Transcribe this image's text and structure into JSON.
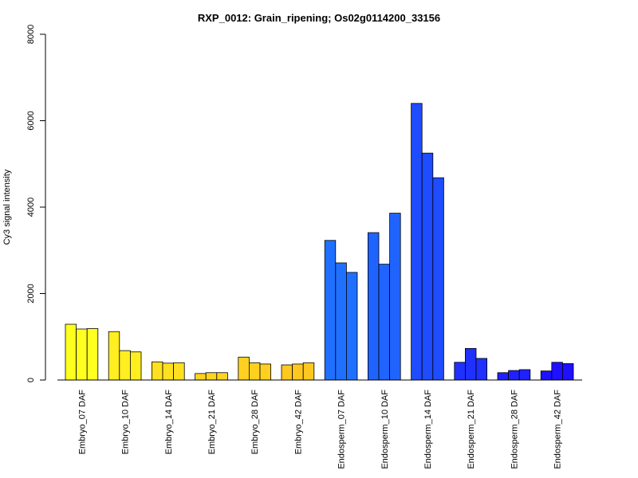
{
  "chart_data": {
    "type": "bar",
    "title": "RXP_0012: Grain_ripening; Os02g0114200_33156",
    "xlabel": "",
    "ylabel": "Cy3 signal intensity",
    "ylim": [
      0,
      8000
    ],
    "yticks": [
      "0",
      "2000",
      "4000",
      "6000",
      "8000"
    ],
    "grid": false,
    "legend": "none",
    "categories": [
      "Embryo_07 DAF",
      "Embryo_10 DAF",
      "Embryo_14 DAF",
      "Embryo_21 DAF",
      "Embryo_28 DAF",
      "Embryo_42 DAF",
      "Endosperm_07 DAF",
      "Endosperm_10 DAF",
      "Endosperm_14 DAF",
      "Endosperm_21 DAF",
      "Endosperm_28 DAF",
      "Endosperm_42 DAF"
    ],
    "group_colors": [
      "#ffff20",
      "#ffee20",
      "#ffe020",
      "#ffd420",
      "#ffd020",
      "#ffc820",
      "#2070ff",
      "#2064ff",
      "#1f4cff",
      "#1f30ff",
      "#1f22ff",
      "#1f10ff"
    ],
    "values": [
      [
        1290,
        1180,
        1190
      ],
      [
        1120,
        680,
        650
      ],
      [
        420,
        390,
        400
      ],
      [
        150,
        170,
        170
      ],
      [
        530,
        400,
        370
      ],
      [
        350,
        370,
        400
      ],
      [
        3230,
        2710,
        2490
      ],
      [
        3410,
        2680,
        3860
      ],
      [
        6400,
        5250,
        4680
      ],
      [
        410,
        730,
        500
      ],
      [
        170,
        220,
        240
      ],
      [
        210,
        410,
        380
      ]
    ]
  }
}
